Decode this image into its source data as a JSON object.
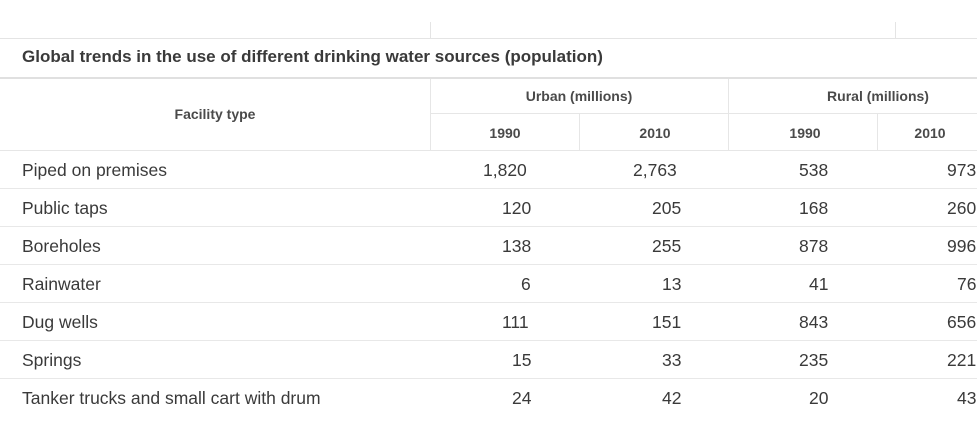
{
  "table": {
    "title": "Global trends in the use of different drinking water sources (population)",
    "facility_header": "Facility type",
    "groups": [
      {
        "label": "Urban (millions)"
      },
      {
        "label": "Rural (millions)"
      }
    ],
    "years": [
      "1990",
      "2010",
      "1990",
      "2010"
    ],
    "rows": [
      {
        "label": "Piped on premises",
        "values": [
          "1,820",
          "2,763",
          "538",
          "973"
        ]
      },
      {
        "label": "Public taps",
        "values": [
          "120",
          "205",
          "168",
          "260"
        ]
      },
      {
        "label": "Boreholes",
        "values": [
          "138",
          "255",
          "878",
          "996"
        ]
      },
      {
        "label": "Rainwater",
        "values": [
          "6",
          "13",
          "41",
          "76"
        ]
      },
      {
        "label": "Dug wells",
        "values": [
          "111",
          "151",
          "843",
          "656"
        ]
      },
      {
        "label": "Springs",
        "values": [
          "15",
          "33",
          "235",
          "221"
        ]
      },
      {
        "label": "Tanker trucks and small cart with drum",
        "values": [
          "24",
          "42",
          "20",
          "43"
        ]
      }
    ]
  }
}
